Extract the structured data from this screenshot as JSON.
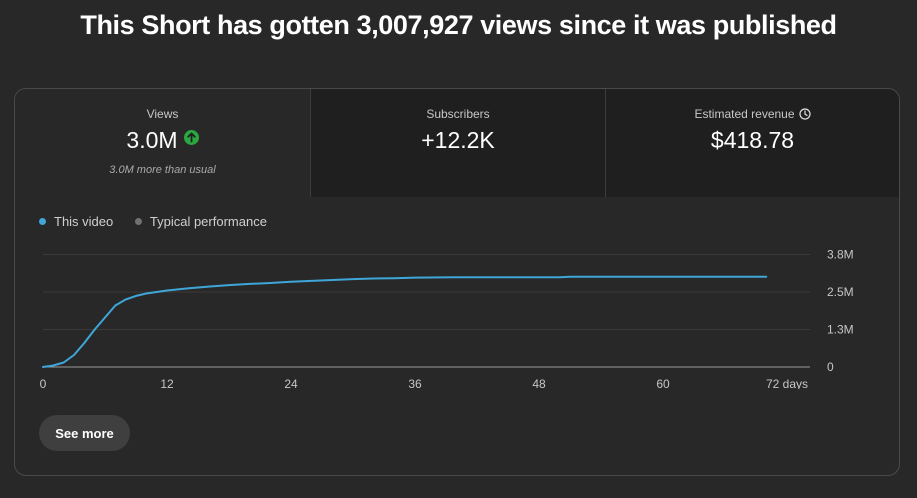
{
  "headline": "This Short has gotten 3,007,927 views since it was published",
  "metrics": [
    {
      "label": "Views",
      "value": "3.0M",
      "sub": "3.0M more than usual",
      "icon": "arrow-up-icon"
    },
    {
      "label": "Subscribers",
      "value": "+12.2K"
    },
    {
      "label": "Estimated revenue",
      "value": "$418.78",
      "icon": "clock-icon"
    }
  ],
  "legend": {
    "this_video": "This video",
    "typical": "Typical performance"
  },
  "colors": {
    "this_video": "#3ea6d8",
    "typical": "#717171",
    "positive": "#2ba640"
  },
  "see_more": "See more",
  "chart_data": {
    "type": "line",
    "x_unit_label": "days",
    "xlim": [
      0,
      72
    ],
    "ylim": [
      0,
      3800000
    ],
    "x_ticks": [
      0,
      12,
      24,
      36,
      48,
      60,
      72
    ],
    "x_tick_labels": [
      "0",
      "12",
      "24",
      "36",
      "48",
      "60",
      "72 days"
    ],
    "y_ticks": [
      0,
      1250000,
      2500000,
      3750000
    ],
    "y_tick_labels": [
      "0",
      "1.3M",
      "2.5M",
      "3.8M"
    ],
    "grid": true,
    "legend_position": "top-left",
    "series": [
      {
        "name": "This video",
        "x": [
          0,
          1,
          2,
          3,
          4,
          5,
          6,
          7,
          8,
          9,
          10,
          12,
          14,
          16,
          18,
          20,
          22,
          24,
          26,
          28,
          30,
          32,
          34,
          36,
          40,
          44,
          48,
          50,
          51,
          54,
          60,
          66,
          70
        ],
        "values": [
          0,
          50000,
          150000,
          400000,
          800000,
          1250000,
          1650000,
          2050000,
          2250000,
          2370000,
          2450000,
          2550000,
          2620000,
          2680000,
          2730000,
          2770000,
          2800000,
          2840000,
          2870000,
          2900000,
          2930000,
          2950000,
          2960000,
          2980000,
          2990000,
          2990000,
          2990000,
          2990000,
          3007927,
          3007927,
          3007927,
          3007927,
          3007927
        ]
      }
    ]
  }
}
